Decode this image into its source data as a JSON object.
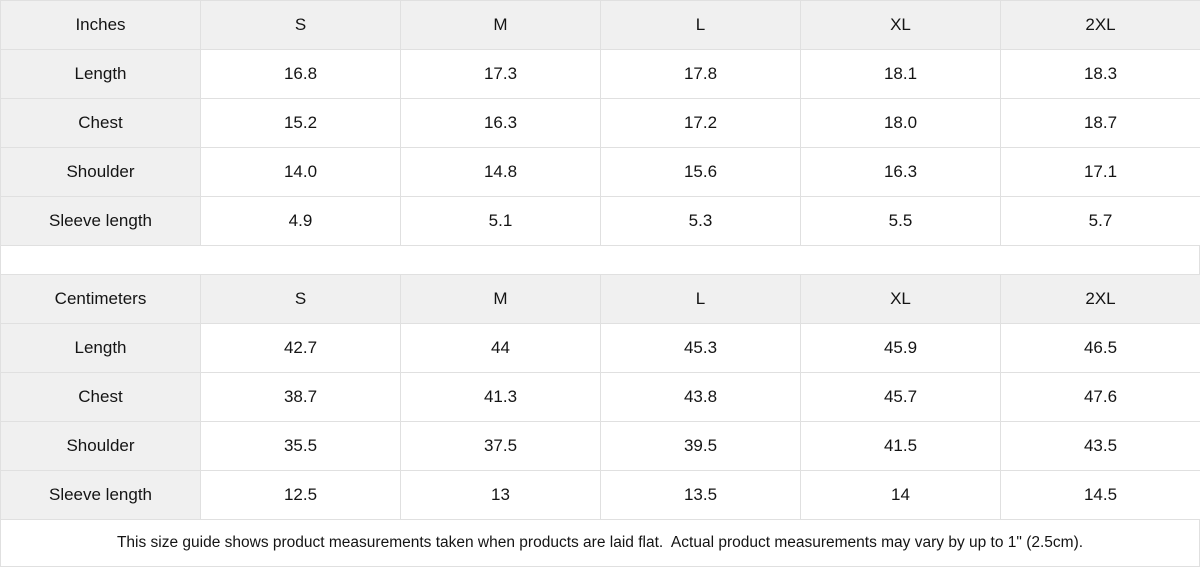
{
  "colors": {
    "table_header_bg": "#f0f0f0",
    "border": "#e0e0e0",
    "text": "#141414",
    "background": "#ffffff"
  },
  "chart_data": [
    {
      "type": "table",
      "title": "Inches",
      "columns": [
        "Inches",
        "S",
        "M",
        "L",
        "XL",
        "2XL"
      ],
      "rows": [
        [
          "Length",
          "16.8",
          "17.3",
          "17.8",
          "18.1",
          "18.3"
        ],
        [
          "Chest",
          "15.2",
          "16.3",
          "17.2",
          "18.0",
          "18.7"
        ],
        [
          "Shoulder",
          "14.0",
          "14.8",
          "15.6",
          "16.3",
          "17.1"
        ],
        [
          "Sleeve length",
          "4.9",
          "5.1",
          "5.3",
          "5.5",
          "5.7"
        ]
      ]
    },
    {
      "type": "table",
      "title": "Centimeters",
      "columns": [
        "Centimeters",
        "S",
        "M",
        "L",
        "XL",
        "2XL"
      ],
      "rows": [
        [
          "Length",
          "42.7",
          "44",
          "45.3",
          "45.9",
          "46.5"
        ],
        [
          "Chest",
          "38.7",
          "41.3",
          "43.8",
          "45.7",
          "47.6"
        ],
        [
          "Shoulder",
          "35.5",
          "37.5",
          "39.5",
          "41.5",
          "43.5"
        ],
        [
          "Sleeve length",
          "12.5",
          "13",
          "13.5",
          "14",
          "14.5"
        ]
      ]
    }
  ],
  "footer": {
    "note": "This size guide shows product measurements taken when products are laid flat.  Actual product measurements may vary by up to 1\" (2.5cm)."
  }
}
